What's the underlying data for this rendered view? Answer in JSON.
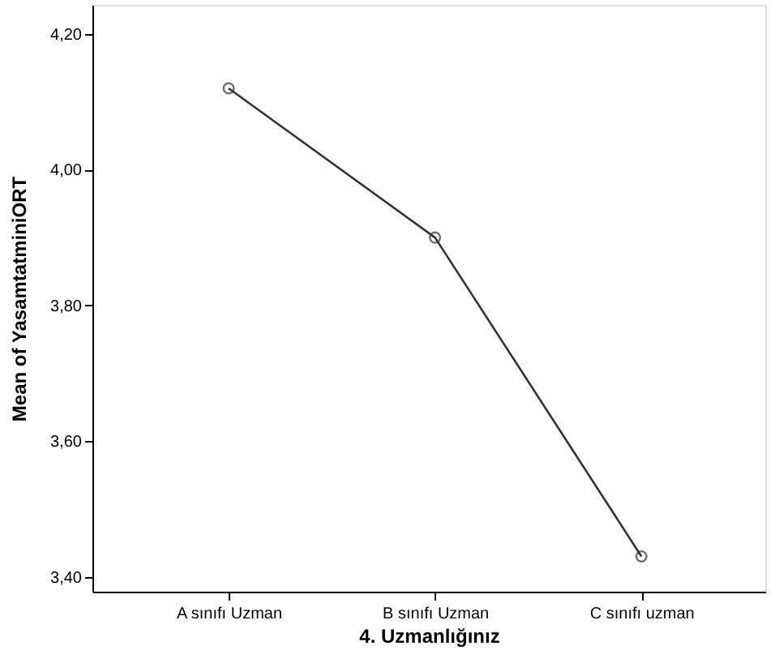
{
  "chart_data": {
    "type": "line",
    "xlabel": "4. Uzmanlığınız",
    "ylabel": "Mean of YasamtatminiORT",
    "categories": [
      "A sınıfı Uzman",
      "B sınıfı Uzman",
      "C sınıfı uzman"
    ],
    "series": [
      {
        "color": "#333333",
        "values": [
          4.12,
          3.9,
          3.43
        ]
      }
    ],
    "ylim": [
      3.378,
      4.243
    ],
    "yticks": [
      {
        "value": 3.4,
        "label": "3,40"
      },
      {
        "value": 3.6,
        "label": "3,60"
      },
      {
        "value": 3.8,
        "label": "3,80"
      },
      {
        "value": 4.0,
        "label": "4,00"
      },
      {
        "value": 4.2,
        "label": "4,20"
      }
    ],
    "grid": false,
    "marker": "circle",
    "line_style": "solid"
  }
}
